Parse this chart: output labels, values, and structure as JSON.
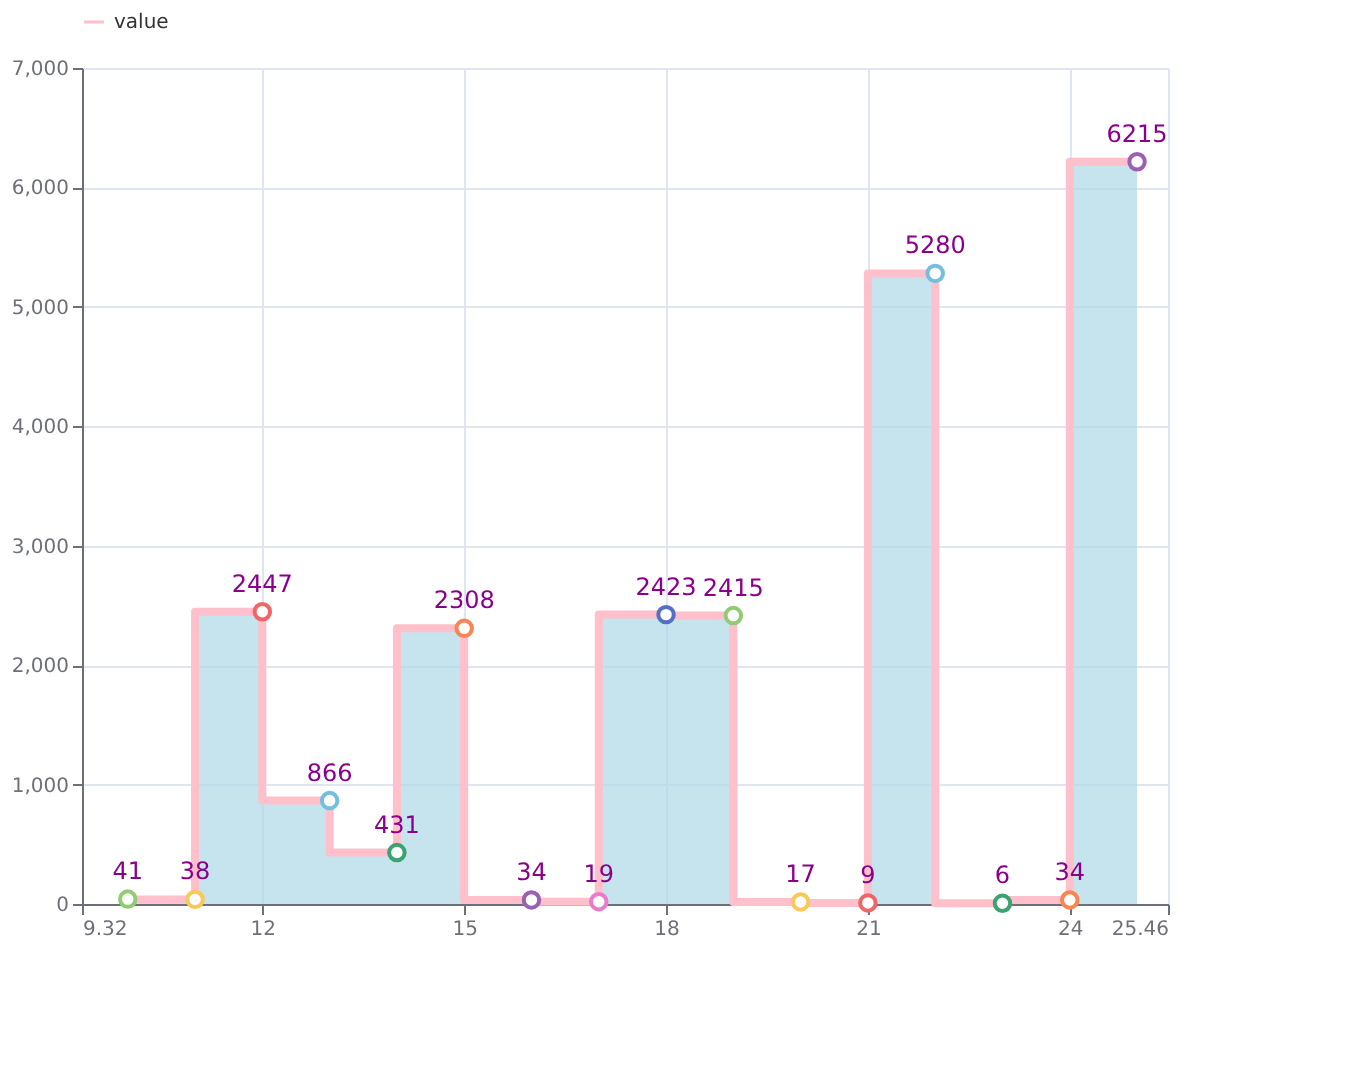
{
  "chart_data": {
    "type": "step",
    "x": [
      10,
      11,
      12,
      13,
      14,
      15,
      16,
      17,
      18,
      19,
      20,
      21,
      22,
      23,
      24,
      25
    ],
    "series": [
      {
        "name": "value",
        "color": "#ffc0cb",
        "values": [
          41,
          38,
          2447,
          866,
          431,
          2308,
          34,
          19,
          2423,
          2415,
          17,
          9,
          5280,
          6,
          34,
          6215
        ]
      }
    ],
    "colors": [
      "#91cc75",
      "#fac858",
      "#ee6666",
      "#73c0de",
      "#3ba272",
      "#fc8452",
      "#9a60b4",
      "#ea7ccc",
      "#5470c6",
      "#91cc75",
      "#fac858",
      "#ee6666",
      "#73c0de",
      "#3ba272",
      "#fc8452",
      "#9a60b4"
    ],
    "xlim": [
      9.32,
      25.46
    ],
    "xticks": [
      9.32,
      12,
      15,
      18,
      21,
      24,
      25.46
    ],
    "ylim": [
      0,
      7000
    ],
    "yticks": [
      0,
      {
        "value": 1000,
        "label": "1,000"
      },
      {
        "value": 2000,
        "label": "2,000"
      },
      {
        "value": 3000,
        "label": "3,000"
      },
      {
        "value": 4000,
        "label": "4,000"
      },
      {
        "value": 5000,
        "label": "5,000"
      },
      {
        "value": 6000,
        "label": "6,000"
      },
      {
        "value": 7000,
        "label": "7,000"
      }
    ],
    "grid": true,
    "legend": "top",
    "marker": "circle",
    "data_labels": true
  }
}
